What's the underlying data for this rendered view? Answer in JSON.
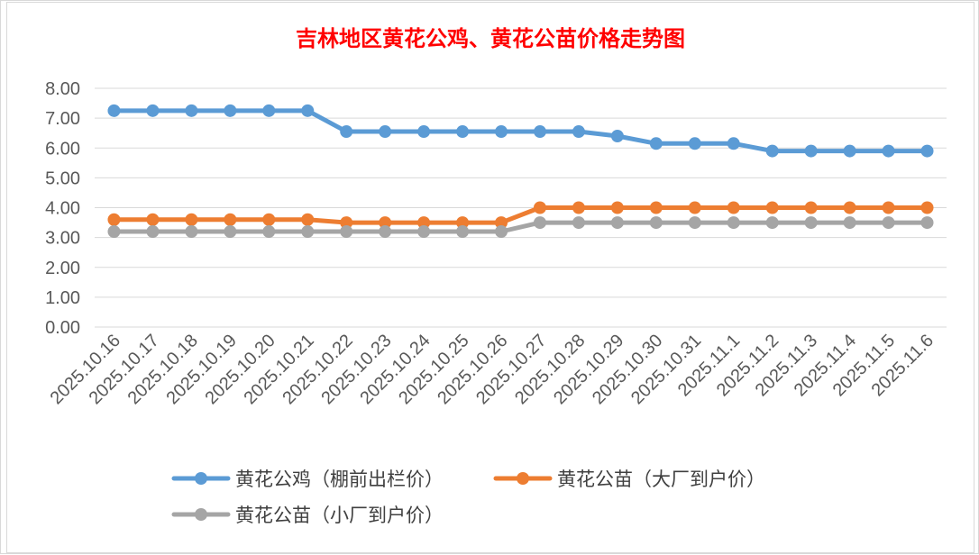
{
  "chart_data": {
    "type": "line",
    "title": "吉林地区黄花公鸡、黄花公苗价格走势图",
    "xlabel": "",
    "ylabel": "",
    "ylim": [
      0,
      8
    ],
    "yticks": [
      "0.00",
      "1.00",
      "2.00",
      "3.00",
      "4.00",
      "5.00",
      "6.00",
      "7.00",
      "8.00"
    ],
    "grid": true,
    "legend_position": "bottom",
    "categories": [
      "2025.10.16",
      "2025.10.17",
      "2025.10.18",
      "2025.10.19",
      "2025.10.20",
      "2025.10.21",
      "2025.10.22",
      "2025.10.23",
      "2025.10.24",
      "2025.10.25",
      "2025.10.26",
      "2025.10.27",
      "2025.10.28",
      "2025.10.29",
      "2025.10.30",
      "2025.10.31",
      "2025.11.1",
      "2025.11.2",
      "2025.11.3",
      "2025.11.4",
      "2025.11.5",
      "2025.11.6"
    ],
    "series": [
      {
        "name": "黄花公鸡（棚前出栏价）",
        "color": "#5b9bd5",
        "values": [
          7.25,
          7.25,
          7.25,
          7.25,
          7.25,
          7.25,
          6.55,
          6.55,
          6.55,
          6.55,
          6.55,
          6.55,
          6.55,
          6.4,
          6.15,
          6.15,
          6.15,
          5.9,
          5.9,
          5.9,
          5.9,
          5.9
        ]
      },
      {
        "name": "黄花公苗（大厂到户价）",
        "color": "#ed7d31",
        "values": [
          3.6,
          3.6,
          3.6,
          3.6,
          3.6,
          3.6,
          3.5,
          3.5,
          3.5,
          3.5,
          3.5,
          4.0,
          4.0,
          4.0,
          4.0,
          4.0,
          4.0,
          4.0,
          4.0,
          4.0,
          4.0,
          4.0
        ]
      },
      {
        "name": "黄花公苗（小厂到户价）",
        "color": "#a5a5a5",
        "values": [
          3.2,
          3.2,
          3.2,
          3.2,
          3.2,
          3.2,
          3.2,
          3.2,
          3.2,
          3.2,
          3.2,
          3.5,
          3.5,
          3.5,
          3.5,
          3.5,
          3.5,
          3.5,
          3.5,
          3.5,
          3.5,
          3.5
        ]
      }
    ]
  }
}
